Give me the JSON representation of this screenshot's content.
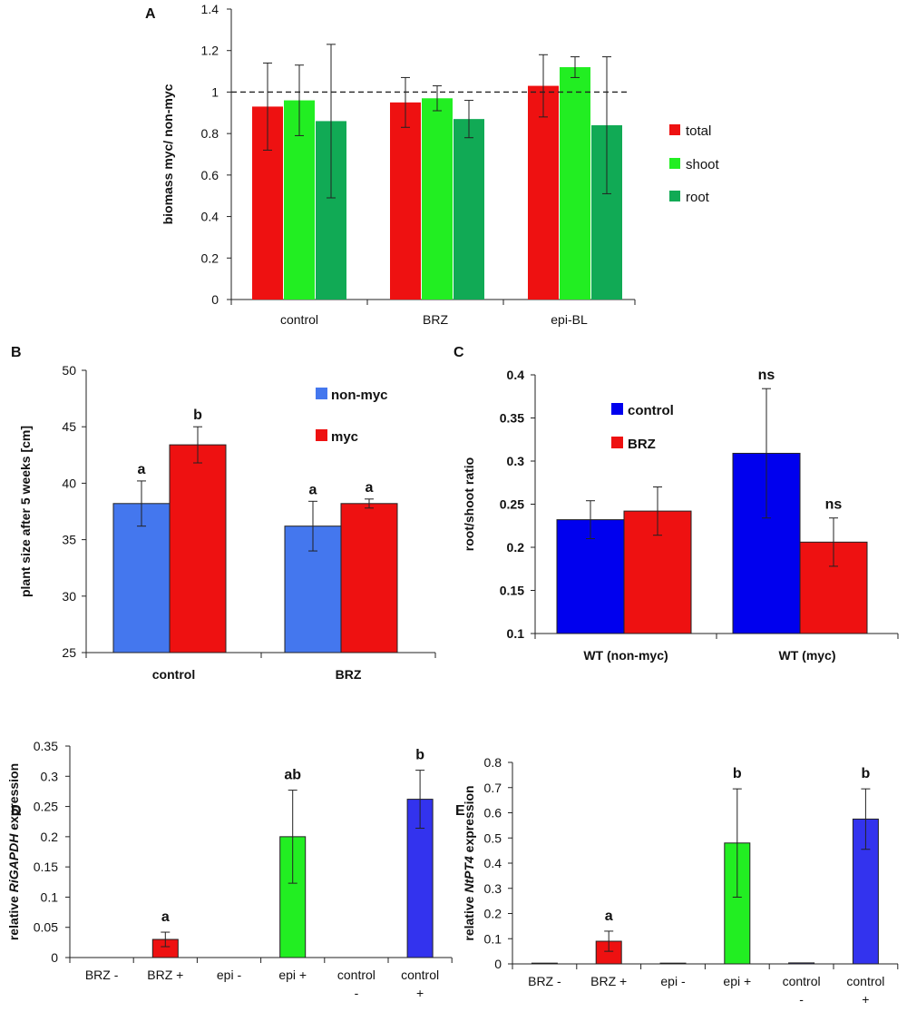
{
  "chart_data": [
    {
      "panel": "A",
      "type": "bar",
      "ylabel": "biomass myc/ non-myc",
      "ylim": [
        0,
        1.4
      ],
      "yticks": [
        "0",
        "0.2",
        "0.4",
        "0.6",
        "0.8",
        "1",
        "1.2",
        "1.4"
      ],
      "reference_line": 1,
      "categories": [
        "control",
        "BRZ",
        "epi-BL"
      ],
      "series": [
        {
          "name": "total",
          "color": "#ee1111",
          "values": [
            0.93,
            0.95,
            1.03
          ],
          "errors": [
            0.21,
            0.12,
            0.15
          ]
        },
        {
          "name": "shoot",
          "color": "#22ee22",
          "values": [
            0.96,
            0.97,
            1.12
          ],
          "errors": [
            0.17,
            0.06,
            0.05
          ]
        },
        {
          "name": "root",
          "color": "#11aa55",
          "values": [
            0.86,
            0.87,
            0.84
          ],
          "errors": [
            0.37,
            0.09,
            0.33
          ]
        }
      ],
      "legend": [
        "total",
        "shoot",
        "root"
      ]
    },
    {
      "panel": "B",
      "type": "bar",
      "ylabel": "plant size after 5 weeks [cm]",
      "ylim": [
        25,
        50
      ],
      "yticks": [
        "25",
        "30",
        "35",
        "40",
        "45",
        "50"
      ],
      "categories": [
        "control",
        "BRZ"
      ],
      "series": [
        {
          "name": "non-myc",
          "color": "#4477ee",
          "values": [
            38.2,
            36.2
          ],
          "errors": [
            2.0,
            2.2
          ],
          "labels": [
            "a",
            "a"
          ]
        },
        {
          "name": "myc",
          "color": "#ee1111",
          "values": [
            43.4,
            38.2
          ],
          "errors": [
            1.6,
            0.4
          ],
          "labels": [
            "b",
            "a"
          ]
        }
      ],
      "legend": [
        "non-myc",
        "myc"
      ]
    },
    {
      "panel": "C",
      "type": "bar",
      "ylabel": "root/shoot ratio",
      "ylim": [
        0.1,
        0.4
      ],
      "yticks": [
        "0.1",
        "0.15",
        "0.2",
        "0.25",
        "0.3",
        "0.35",
        "0.4"
      ],
      "categories": [
        "WT (non-myc)",
        "WT (myc)"
      ],
      "series": [
        {
          "name": "control",
          "color": "#0000ee",
          "values": [
            0.232,
            0.309
          ],
          "errors": [
            0.022,
            0.075
          ],
          "labels": [
            "",
            "ns"
          ]
        },
        {
          "name": "BRZ",
          "color": "#ee1111",
          "values": [
            0.242,
            0.206
          ],
          "errors": [
            0.028,
            0.028
          ],
          "labels": [
            "",
            "ns"
          ]
        }
      ],
      "legend": [
        "control",
        "BRZ"
      ]
    },
    {
      "panel": "D",
      "type": "bar",
      "ylabel_parts": [
        "relative ",
        "RiGAPDH",
        " expression"
      ],
      "ylim": [
        0,
        0.35
      ],
      "yticks": [
        "0",
        "0.05",
        "0.1",
        "0.15",
        "0.2",
        "0.25",
        "0.3",
        "0.35"
      ],
      "categories": [
        [
          "BRZ -"
        ],
        [
          "BRZ +"
        ],
        [
          "epi -"
        ],
        [
          "epi +"
        ],
        [
          "control",
          "-"
        ],
        [
          "control",
          "+"
        ]
      ],
      "values": [
        0,
        0.03,
        0,
        0.2,
        0,
        0.262
      ],
      "errors": [
        0,
        0.012,
        0,
        0.077,
        0,
        0.048
      ],
      "colors": [
        "#ee1111",
        "#ee1111",
        "#22ee22",
        "#22ee22",
        "#3333ee",
        "#3333ee"
      ],
      "labels": [
        "",
        "a",
        "",
        "ab",
        "",
        "b"
      ]
    },
    {
      "panel": "E",
      "type": "bar",
      "ylabel_parts": [
        "relative ",
        "NtPT4",
        " expression"
      ],
      "ylim": [
        0,
        0.8
      ],
      "yticks": [
        "0",
        "0.1",
        "0.2",
        "0.3",
        "0.4",
        "0.5",
        "0.6",
        "0.7",
        "0.8"
      ],
      "categories": [
        [
          "BRZ -"
        ],
        [
          "BRZ +"
        ],
        [
          "epi -"
        ],
        [
          "epi +"
        ],
        [
          "control",
          "-"
        ],
        [
          "control",
          "+"
        ]
      ],
      "values": [
        0.003,
        0.09,
        0.003,
        0.48,
        0.004,
        0.575
      ],
      "errors": [
        0,
        0.04,
        0,
        0.215,
        0,
        0.12
      ],
      "colors": [
        "#3333ee",
        "#ee1111",
        "#3333ee",
        "#22ee22",
        "#3333ee",
        "#3333ee"
      ],
      "labels": [
        "",
        "a",
        "",
        "b",
        "",
        "b"
      ]
    }
  ]
}
